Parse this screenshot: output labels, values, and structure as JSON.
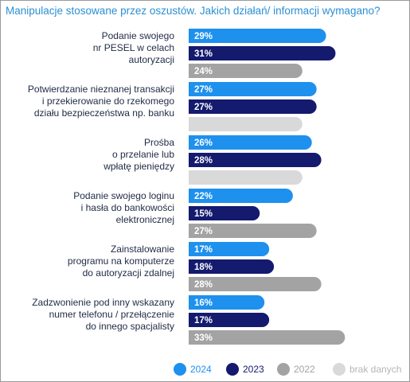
{
  "chart_data": {
    "type": "bar",
    "orientation": "horizontal",
    "title": "Manipulacje stosowane przez oszustów. Jakich działań/ informacji wymagano?",
    "categories": [
      [
        "Podanie swojego",
        "nr PESEL w celach",
        "autoryzacji"
      ],
      [
        "Potwierdzanie  nieznanej transakcji",
        "i przekierowanie do rzekomego",
        "działu bezpieczeństwa np. banku"
      ],
      [
        "Prośba",
        "o przelanie lub",
        "wpłatę pieniędzy"
      ],
      [
        "Podanie swojego loginu",
        "i hasła do bankowości",
        "elektronicznej"
      ],
      [
        "Zainstalowanie",
        "programu na komputerze",
        "do autoryzacji zdalnej"
      ],
      [
        "Zadzwonienie pod inny wskazany",
        "numer telefonu / przełączenie",
        "do innego spacjalisty"
      ]
    ],
    "series": [
      {
        "name": "2024",
        "color": "#1e90ee",
        "values": [
          29,
          27,
          26,
          22,
          17,
          16
        ]
      },
      {
        "name": "2023",
        "color": "#141a6e",
        "values": [
          31,
          27,
          28,
          15,
          18,
          17
        ]
      },
      {
        "name": "2022",
        "color": "#a3a3a3",
        "values": [
          24,
          null,
          null,
          27,
          28,
          33
        ]
      }
    ],
    "no_data": {
      "name": "brak danych",
      "color": "#d9d9d9",
      "value": 24
    },
    "xlim": [
      0,
      35
    ],
    "legend_position": "bottom-right"
  }
}
